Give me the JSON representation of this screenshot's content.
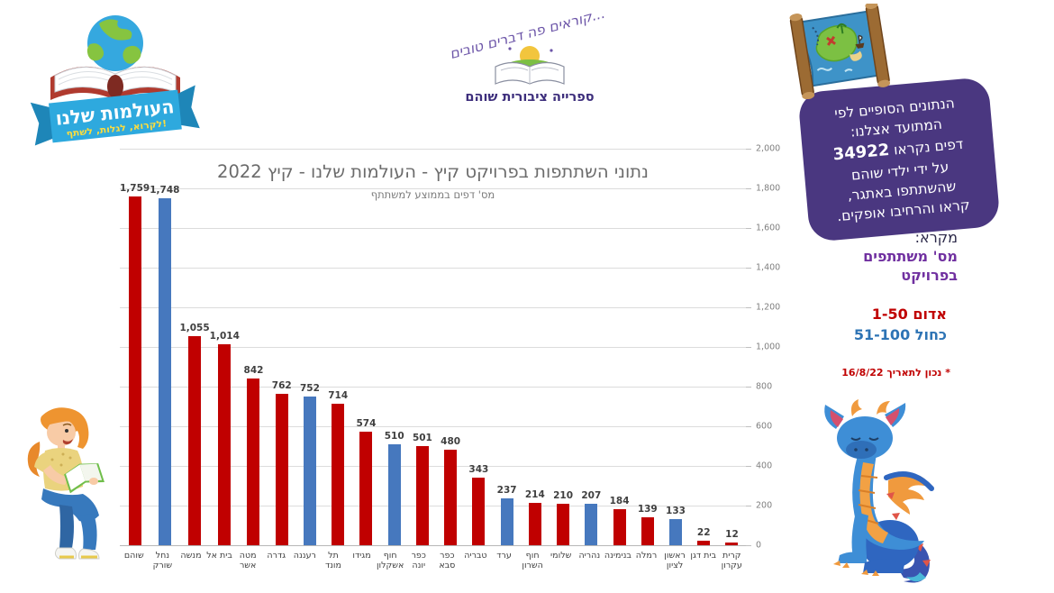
{
  "left_logo": {
    "title": "העולמות שלנו",
    "tagline": "לקרוא, לגלות, לשתף!"
  },
  "library_logo": {
    "arc_text": "קוראים פה דברים טובים...",
    "name": "ספרייה ציבורית שוהם"
  },
  "bubble": {
    "line1": "הנתונים הסופיים לפי",
    "line2": "המתועד אצלנו:",
    "number": "34922",
    "line3_rest": "דפים נקראו",
    "line4": "על ידי ילדי שוהם",
    "line5": "שהשתתפו באתגר,",
    "line6": "קראו והרחיבו אופקים.",
    "bg_color": "#4A3780"
  },
  "legend": {
    "title": "מקרא:",
    "subtitle": "מס' משתתפים בפרויקט",
    "red_item": "1-50 אדום",
    "blue_item": "51-100 כחול",
    "note": "* נכון לתאריך 16/8/22",
    "red_color": "#C00000",
    "blue_color": "#2E74B5"
  },
  "chart_data": {
    "type": "bar",
    "title": "נתוני השתתפות בפרויקט קיץ - העולמות שלנו - קיץ 2022",
    "subtitle": "מס' דפים בממוצע למשתתף",
    "ylim": [
      0,
      2000
    ],
    "ytick_step": 200,
    "ytick_labels": [
      "0",
      "200",
      "400",
      "600",
      "800",
      "1,000",
      "1,200",
      "1,400",
      "1,600",
      "1,800",
      "2,000"
    ],
    "grid": true,
    "value_axis_side": "right",
    "bar_colors": {
      "red": "#C00000",
      "blue": "#4678BE"
    },
    "bars": [
      {
        "label": "שוהם",
        "value": 1759,
        "display": "1,759",
        "color": "red"
      },
      {
        "label": "נחל\nשורק",
        "value": 1748,
        "display": "1,748",
        "color": "blue"
      },
      {
        "label": "מנשה",
        "value": 1055,
        "display": "1,055",
        "color": "red"
      },
      {
        "label": "בית אל",
        "value": 1014,
        "display": "1,014",
        "color": "red"
      },
      {
        "label": "מטה\nאשר",
        "value": 842,
        "display": "842",
        "color": "red"
      },
      {
        "label": "גדרה",
        "value": 762,
        "display": "762",
        "color": "red"
      },
      {
        "label": "רעננה",
        "value": 752,
        "display": "752",
        "color": "blue"
      },
      {
        "label": "תל מונד",
        "value": 714,
        "display": "714",
        "color": "red"
      },
      {
        "label": "מגידו",
        "value": 574,
        "display": "574",
        "color": "red"
      },
      {
        "label": "חוף\nאשקלון",
        "value": 510,
        "display": "510",
        "color": "blue"
      },
      {
        "label": "כפר יונה",
        "value": 501,
        "display": "501",
        "color": "red"
      },
      {
        "label": "כפר\nסבא",
        "value": 480,
        "display": "480",
        "color": "red"
      },
      {
        "label": "טבריה",
        "value": 343,
        "display": "343",
        "color": "red"
      },
      {
        "label": "ערד",
        "value": 237,
        "display": "237",
        "color": "blue"
      },
      {
        "label": "חוף\nהשרון",
        "value": 214,
        "display": "214",
        "color": "red"
      },
      {
        "label": "שלומי",
        "value": 210,
        "display": "210",
        "color": "red"
      },
      {
        "label": "נהריה",
        "value": 207,
        "display": "207",
        "color": "blue"
      },
      {
        "label": "בנימינה",
        "value": 184,
        "display": "184",
        "color": "red"
      },
      {
        "label": "רמלה",
        "value": 139,
        "display": "139",
        "color": "red"
      },
      {
        "label": "ראשון\nלציון",
        "value": 133,
        "display": "133",
        "color": "blue"
      },
      {
        "label": "בית דגן",
        "value": 22,
        "display": "22",
        "color": "red"
      },
      {
        "label": "קרית\nעקרון",
        "value": 12,
        "display": "12",
        "color": "red"
      }
    ]
  }
}
